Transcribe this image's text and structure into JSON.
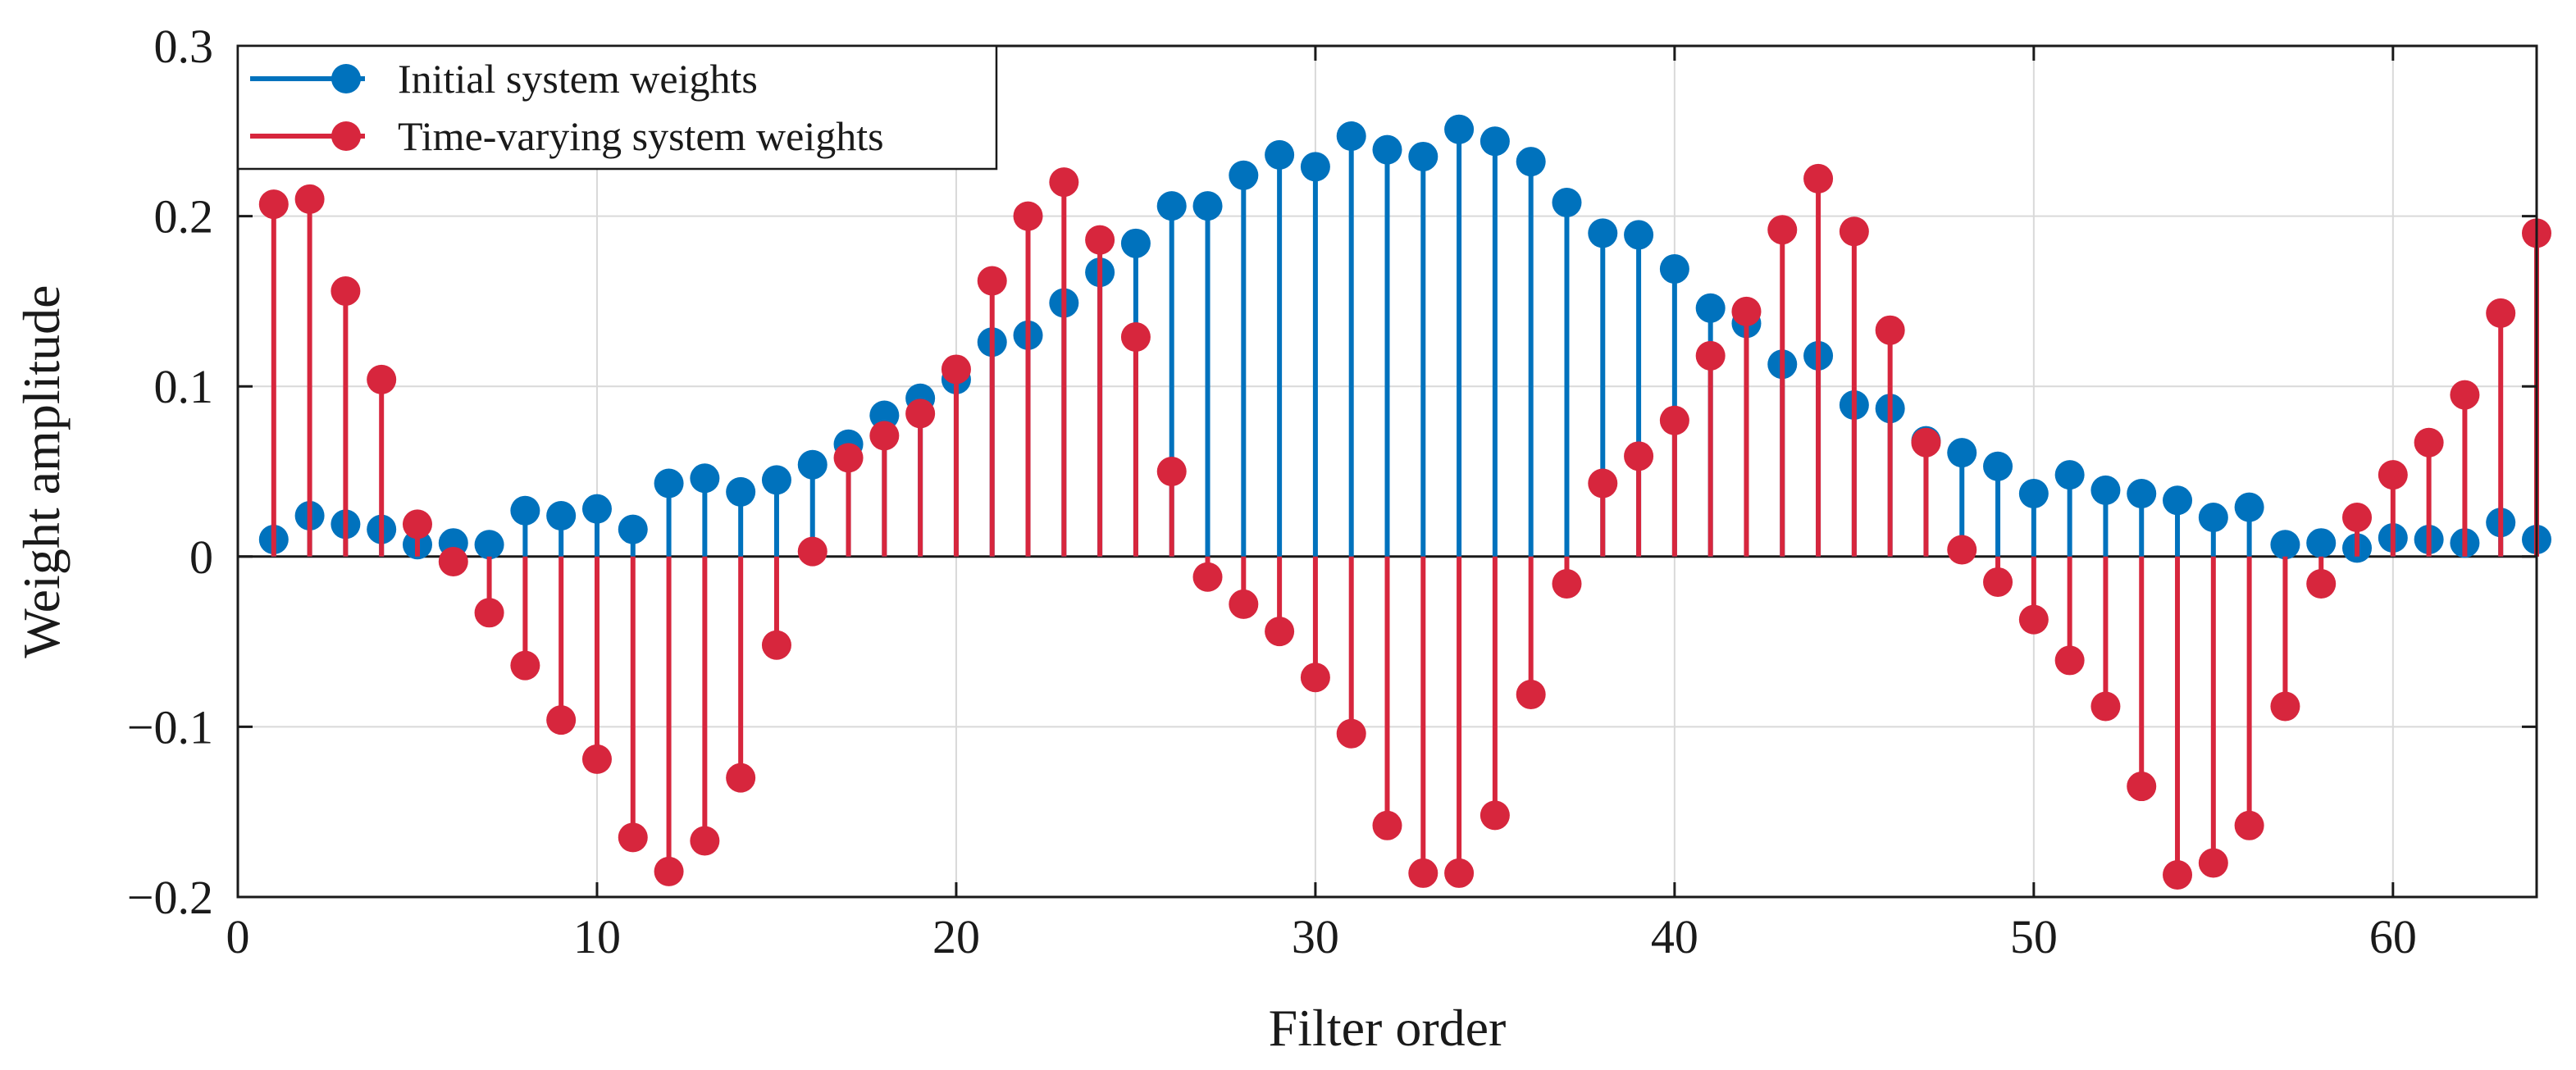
{
  "chart_data": {
    "type": "stem",
    "title": "",
    "xlabel": "Filter order",
    "ylabel": "Weight amplitude",
    "xlim": [
      0,
      64
    ],
    "ylim": [
      -0.2,
      0.3
    ],
    "xticks": [
      0,
      10,
      20,
      30,
      40,
      50,
      60
    ],
    "yticks": [
      -0.2,
      -0.1,
      0,
      0.1,
      0.2,
      0.3
    ],
    "xtick_labels": [
      "0",
      "10",
      "20",
      "30",
      "40",
      "50",
      "60"
    ],
    "ytick_labels": [
      "−0.2",
      "−0.1",
      "0",
      "0.1",
      "0.2",
      "0.3"
    ],
    "grid": true,
    "legend_position": "top-left",
    "x": [
      1,
      2,
      3,
      4,
      5,
      6,
      7,
      8,
      9,
      10,
      11,
      12,
      13,
      14,
      15,
      16,
      17,
      18,
      19,
      20,
      21,
      22,
      23,
      24,
      25,
      26,
      27,
      28,
      29,
      30,
      31,
      32,
      33,
      34,
      35,
      36,
      37,
      38,
      39,
      40,
      41,
      42,
      43,
      44,
      45,
      46,
      47,
      48,
      49,
      50,
      51,
      52,
      53,
      54,
      55,
      56,
      57,
      58,
      59,
      60,
      61,
      62,
      63,
      64
    ],
    "series": [
      {
        "name": "Initial system weights",
        "color": "#0072BD",
        "values": [
          0.01,
          0.024,
          0.019,
          0.016,
          0.007,
          0.008,
          0.007,
          0.027,
          0.024,
          0.028,
          0.016,
          0.043,
          0.046,
          0.038,
          0.045,
          0.054,
          0.066,
          0.083,
          0.093,
          0.104,
          0.126,
          0.13,
          0.149,
          0.167,
          0.184,
          0.206,
          0.206,
          0.224,
          0.236,
          0.229,
          0.247,
          0.239,
          0.235,
          0.251,
          0.244,
          0.232,
          0.208,
          0.19,
          0.189,
          0.169,
          0.146,
          0.137,
          0.113,
          0.118,
          0.089,
          0.087,
          0.068,
          0.061,
          0.053,
          0.037,
          0.048,
          0.039,
          0.037,
          0.033,
          0.023,
          0.029,
          0.007,
          0.008,
          0.005,
          0.011,
          0.01,
          0.008,
          0.02,
          0.01
        ]
      },
      {
        "name": "Time-varying system weights",
        "color": "#D7263D",
        "values": [
          0.207,
          0.21,
          0.156,
          0.104,
          0.019,
          -0.003,
          -0.033,
          -0.064,
          -0.096,
          -0.119,
          -0.165,
          -0.185,
          -0.167,
          -0.13,
          -0.052,
          0.003,
          0.058,
          0.071,
          0.084,
          0.11,
          0.162,
          0.2,
          0.22,
          0.186,
          0.129,
          0.05,
          -0.012,
          -0.028,
          -0.044,
          -0.071,
          -0.104,
          -0.158,
          -0.186,
          -0.186,
          -0.152,
          -0.081,
          -0.016,
          0.043,
          0.059,
          0.08,
          0.118,
          0.144,
          0.192,
          0.222,
          0.191,
          0.133,
          0.067,
          0.004,
          -0.015,
          -0.037,
          -0.061,
          -0.088,
          -0.135,
          -0.187,
          -0.18,
          -0.158,
          -0.088,
          -0.016,
          0.023,
          0.048,
          0.067,
          0.095,
          0.143,
          0.19
        ]
      }
    ]
  }
}
